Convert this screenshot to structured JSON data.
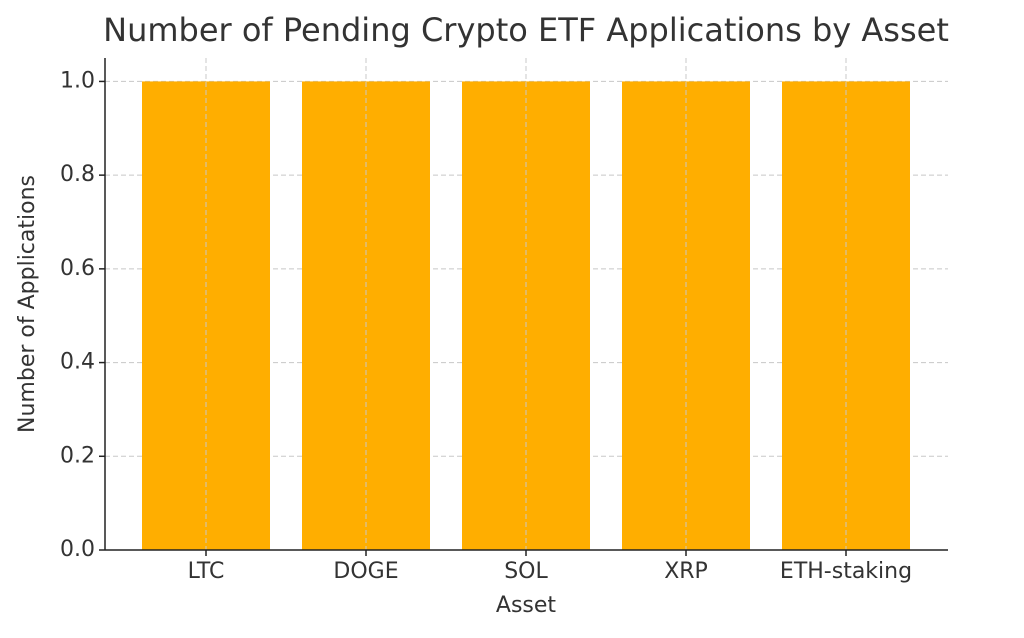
{
  "chart_data": {
    "type": "bar",
    "title": "Number of Pending Crypto ETF Applications by Asset",
    "x_label": "Asset",
    "y_label": "Number of Applications",
    "categories": [
      "LTC",
      "DOGE",
      "SOL",
      "XRP",
      "ETH-staking"
    ],
    "values": [
      1,
      1,
      1,
      1,
      1
    ],
    "color": "#ffae00",
    "ylim": [
      0,
      1.05
    ],
    "yticks": [
      {
        "value": 0,
        "label": "0.0"
      },
      0.2,
      0.4,
      0.6,
      0.8,
      {
        "value": 1,
        "label": "1.0"
      }
    ],
    "grid": true
  }
}
